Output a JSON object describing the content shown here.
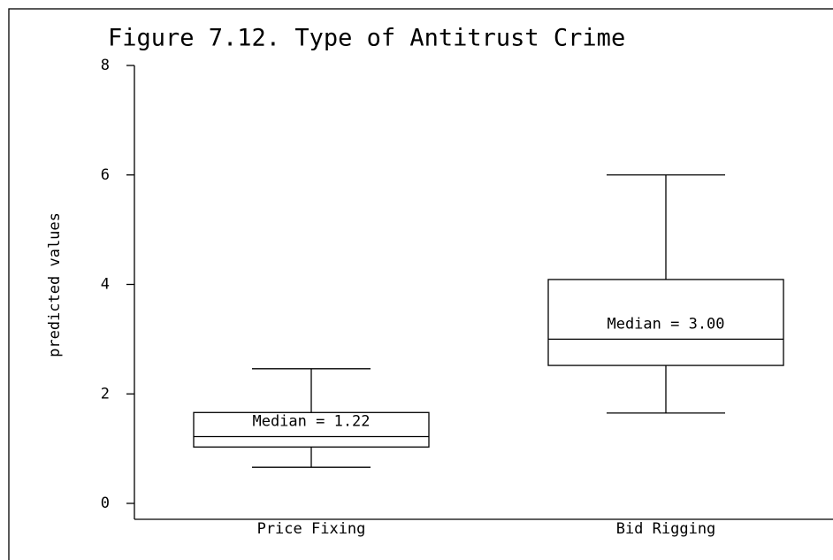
{
  "chart_data": {
    "type": "box",
    "title": "Figure 7.12. Type of Antitrust Crime",
    "y_label": "predicted values",
    "categories": [
      "Price Fixing",
      "Bid Rigging"
    ],
    "boxes": [
      {
        "whisker_low": 0.66,
        "q1": 1.03,
        "median": 1.22,
        "q3": 1.66,
        "whisker_high": 2.46
      },
      {
        "whisker_low": 1.65,
        "q1": 2.52,
        "median": 3.0,
        "q3": 4.09,
        "whisker_high": 6.0
      }
    ],
    "median_labels": [
      "Median = 1.22",
      "Median = 3.00"
    ],
    "color": "#000000",
    "ylim": [
      0,
      8
    ],
    "yticks": [
      0,
      2,
      4,
      6,
      8
    ],
    "grid": false
  }
}
